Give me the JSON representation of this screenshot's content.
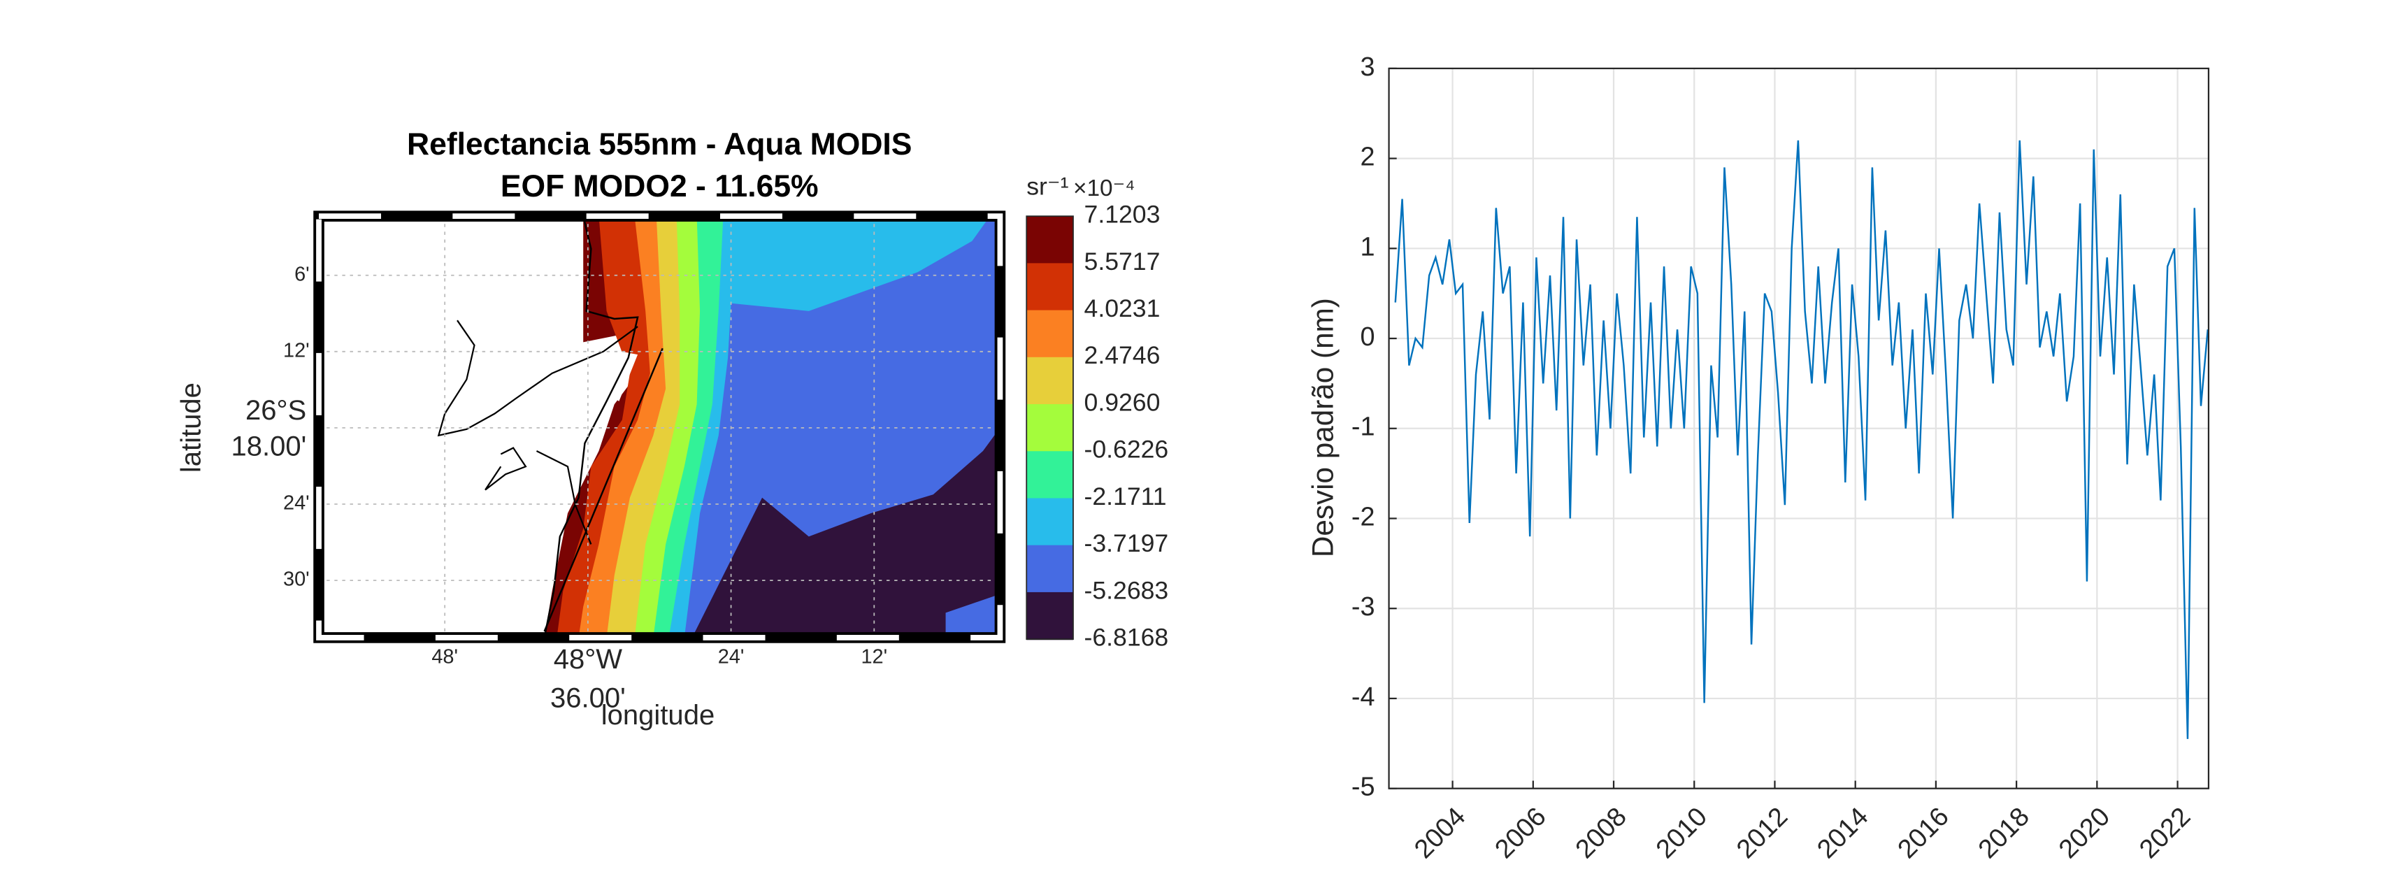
{
  "chart_data": [
    {
      "type": "contour_map",
      "title": [
        "Reflectancia 555nm - Aqua MODIS",
        "EOF MODO2 - 11.65%"
      ],
      "xlabel": "longitude",
      "ylabel": "latitude",
      "xlim": [
        -48.976,
        -48.024
      ],
      "ylim": [
        -26.575,
        -26.0225
      ],
      "xticks": [
        {
          "value": -48.8,
          "label": "48'"
        },
        {
          "value": -48.6,
          "label": [
            "48°W",
            "36.00'"
          ]
        },
        {
          "value": -48.4,
          "label": "24'"
        },
        {
          "value": -48.2,
          "label": "12'"
        }
      ],
      "yticks": [
        {
          "value": -26.1,
          "label": "6'"
        },
        {
          "value": -26.2,
          "label": "12'"
        },
        {
          "value": -26.3,
          "label": [
            "26°S",
            "18.00'"
          ]
        },
        {
          "value": -26.4,
          "label": "24'"
        },
        {
          "value": -26.5,
          "label": "30'"
        }
      ],
      "grid": true,
      "colorbar": {
        "label": "sr⁻¹",
        "scale": "×10⁻⁴",
        "ticks": [
          7.1203,
          5.5717,
          4.0231,
          2.4746,
          {
            "value": 0.926,
            "label": "0.9260"
          },
          -0.6226,
          -2.1711,
          -3.7197,
          -5.2683,
          -6.8168
        ],
        "colors": [
          "#7a0403",
          "#d23105",
          "#fb8022",
          "#e7cf3a",
          "#a4fc3c",
          "#32f298",
          "#28bceb",
          "#466be3",
          "#30123b"
        ]
      }
    },
    {
      "type": "line",
      "ylabel": "Desvio padrão (nm)",
      "color": "#0072bd",
      "xlim": [
        2002.42,
        2022.77
      ],
      "ylim": [
        -5,
        3
      ],
      "xticks": [
        2004,
        2006,
        2008,
        2010,
        2012,
        2014,
        2016,
        2018,
        2020,
        2022
      ],
      "yticks": [
        3,
        2,
        1,
        0,
        -1,
        -2,
        -3,
        -4,
        -5
      ],
      "grid": true,
      "x": [
        2002.58,
        2002.75,
        2002.92,
        2003.08,
        2003.25,
        2003.42,
        2003.58,
        2003.75,
        2003.92,
        2004.08,
        2004.25,
        2004.42,
        2004.58,
        2004.75,
        2004.92,
        2005.08,
        2005.25,
        2005.42,
        2005.58,
        2005.75,
        2005.92,
        2006.08,
        2006.25,
        2006.42,
        2006.58,
        2006.75,
        2006.92,
        2007.08,
        2007.25,
        2007.42,
        2007.58,
        2007.75,
        2007.92,
        2008.08,
        2008.25,
        2008.42,
        2008.58,
        2008.75,
        2008.92,
        2009.08,
        2009.25,
        2009.42,
        2009.58,
        2009.75,
        2009.92,
        2010.08,
        2010.25,
        2010.42,
        2010.58,
        2010.75,
        2010.92,
        2011.08,
        2011.25,
        2011.42,
        2011.58,
        2011.75,
        2011.92,
        2012.08,
        2012.25,
        2012.42,
        2012.58,
        2012.75,
        2012.92,
        2013.08,
        2013.25,
        2013.42,
        2013.58,
        2013.75,
        2013.92,
        2014.08,
        2014.25,
        2014.42,
        2014.58,
        2014.75,
        2014.92,
        2015.08,
        2015.25,
        2015.42,
        2015.58,
        2015.75,
        2015.92,
        2016.08,
        2016.25,
        2016.42,
        2016.58,
        2016.75,
        2016.92,
        2017.08,
        2017.25,
        2017.42,
        2017.58,
        2017.75,
        2017.92,
        2018.08,
        2018.25,
        2018.42,
        2018.58,
        2018.75,
        2018.92,
        2019.08,
        2019.25,
        2019.42,
        2019.58,
        2019.75,
        2019.92,
        2020.08,
        2020.25,
        2020.42,
        2020.58,
        2020.75,
        2020.92,
        2021.08,
        2021.25,
        2021.42,
        2021.58,
        2021.75,
        2021.92,
        2022.08,
        2022.25,
        2022.42,
        2022.58,
        2022.75
      ],
      "values": [
        0.4,
        1.55,
        -0.3,
        0.0,
        -0.1,
        0.7,
        0.9,
        0.6,
        1.1,
        0.5,
        0.6,
        -2.05,
        -0.4,
        0.3,
        -0.9,
        1.45,
        0.5,
        0.8,
        -1.5,
        0.4,
        -2.2,
        0.9,
        -0.5,
        0.7,
        -0.8,
        1.35,
        -2.0,
        1.1,
        -0.3,
        0.6,
        -1.3,
        0.2,
        -1.0,
        0.5,
        -0.3,
        -1.5,
        1.35,
        -1.1,
        0.4,
        -1.2,
        0.8,
        -1.0,
        0.1,
        -1.0,
        0.8,
        0.5,
        -4.05,
        -0.3,
        -1.1,
        1.9,
        0.6,
        -1.3,
        0.3,
        -3.4,
        -1.3,
        0.5,
        0.3,
        -0.6,
        -1.85,
        1.0,
        2.2,
        0.3,
        -0.5,
        0.8,
        -0.5,
        0.4,
        1.0,
        -1.6,
        0.6,
        -0.2,
        -1.8,
        1.9,
        0.2,
        1.2,
        -0.3,
        0.4,
        -1.0,
        0.1,
        -1.5,
        0.5,
        -0.4,
        1.0,
        -0.4,
        -2.0,
        0.2,
        0.6,
        0.0,
        1.5,
        0.5,
        -0.5,
        1.4,
        0.1,
        -0.3,
        2.2,
        0.6,
        1.8,
        -0.1,
        0.3,
        -0.2,
        0.5,
        -0.7,
        -0.2,
        1.5,
        -2.7,
        2.1,
        -0.2,
        0.9,
        -0.4,
        1.6,
        -1.4,
        0.6,
        -0.3,
        -1.3,
        -0.4,
        -1.8,
        0.8,
        1.0,
        -1.2,
        -4.45,
        1.45,
        -0.75,
        0.1
      ]
    }
  ]
}
